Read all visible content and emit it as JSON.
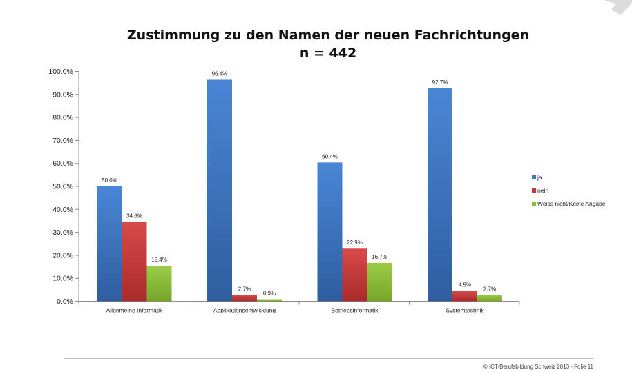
{
  "chart_data": {
    "type": "bar",
    "title": "Zustimmung zu den Namen der neuen Fachrichtungen",
    "subtitle": "n = 442",
    "categories": [
      "Allgemeine Informatik",
      "Applikationsentwicklung",
      "Betriebsinformatik",
      "Systemtechnik"
    ],
    "series": [
      {
        "name": "ja",
        "values": [
          50.0,
          96.4,
          60.4,
          92.7
        ],
        "labels": [
          "50.0%",
          "96.4%",
          "60.4%",
          "92.7%"
        ],
        "color": "#3f78c4"
      },
      {
        "name": "nein",
        "values": [
          34.6,
          2.7,
          22.9,
          4.5
        ],
        "labels": [
          "34.6%",
          "2.7%",
          "22.9%",
          "4.5%"
        ],
        "color": "#c7393a"
      },
      {
        "name": "Weiss nicht/Keine Angabe",
        "values": [
          15.4,
          0.9,
          16.7,
          2.7
        ],
        "labels": [
          "15.4%",
          "0.9%",
          "16.7%",
          "2.7%"
        ],
        "color": "#8cbb36"
      }
    ],
    "y_ticks": [
      "0.0%",
      "10.0%",
      "20.0%",
      "30.0%",
      "40.0%",
      "50.0%",
      "60.0%",
      "70.0%",
      "80.0%",
      "90.0%",
      "100.0%"
    ],
    "ylim": [
      0,
      100
    ],
    "grid": false,
    "legend_position": "right"
  },
  "footer": {
    "text": "© ICT-Berufsbildung Schweiz 2013 - Folie 11"
  }
}
